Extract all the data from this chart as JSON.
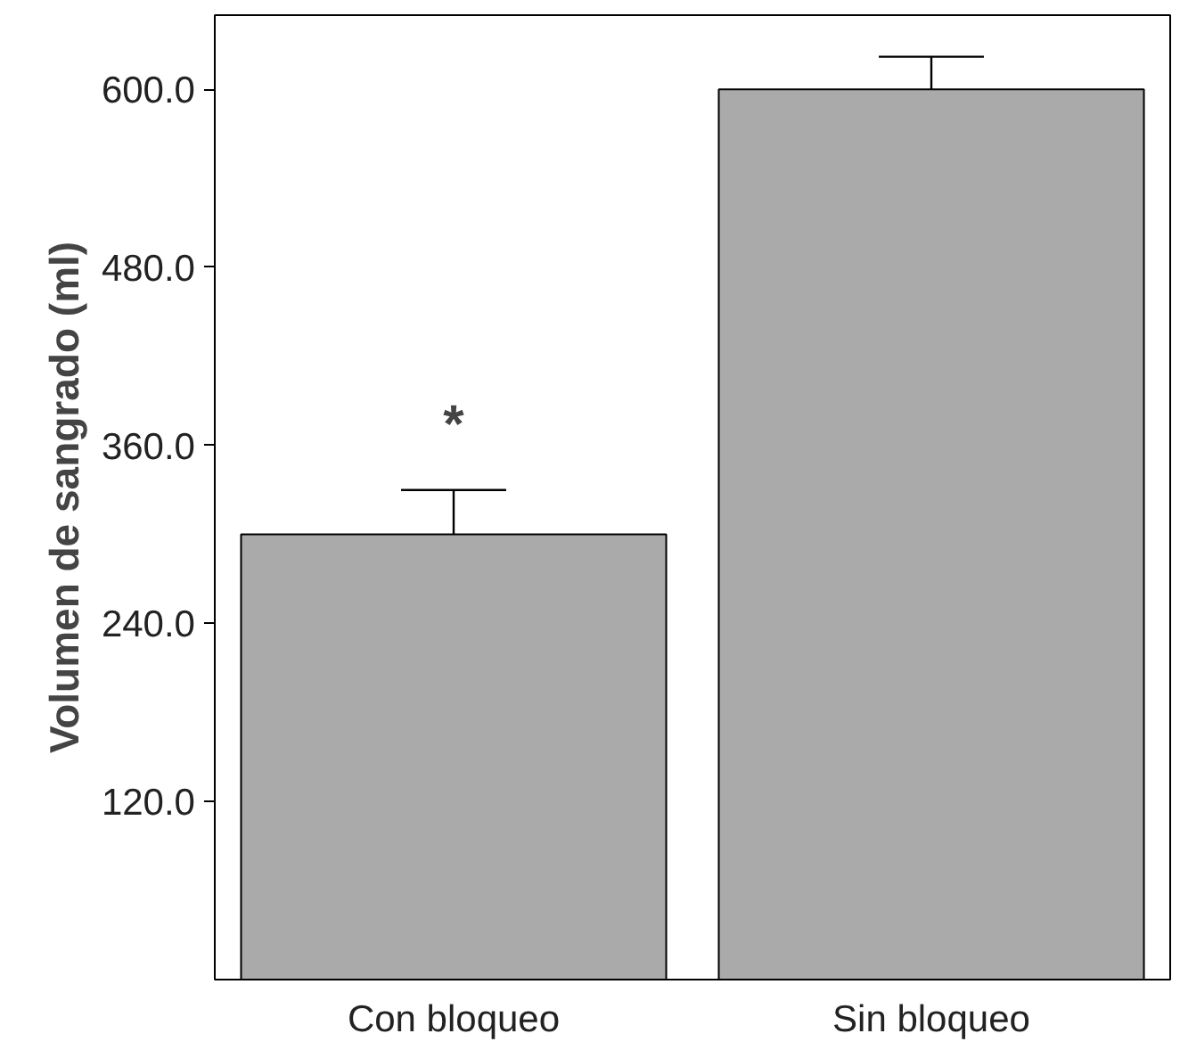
{
  "chart_data": {
    "type": "bar",
    "ylabel": "Volumen de sangrado (ml)",
    "categories": [
      "Con bloqueo",
      "Sin bloqueo"
    ],
    "values": [
      300,
      600
    ],
    "errors": [
      30,
      22
    ],
    "color": "#aaaaaa",
    "ylim": [
      0,
      650
    ],
    "yticks": [
      {
        "value": 120,
        "label": "120.0"
      },
      {
        "value": 240,
        "label": "240.0"
      },
      {
        "value": 360,
        "label": "360.0"
      },
      {
        "value": 480,
        "label": "480.0"
      },
      {
        "value": 600,
        "label": "600.0"
      }
    ],
    "annotations": [
      "*"
    ],
    "grid": false
  }
}
